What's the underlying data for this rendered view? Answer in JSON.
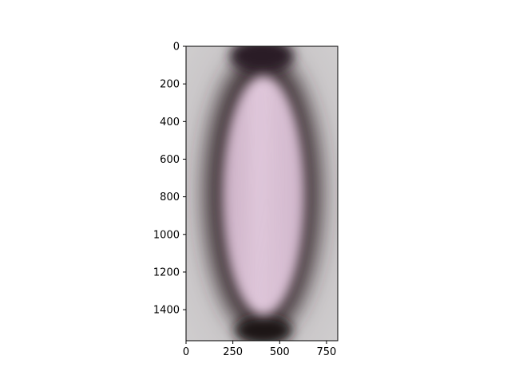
{
  "image": {
    "subject": "microscopy-cell",
    "palette": {
      "background": "#c9c6c8",
      "cell_interior": "#d9bcd2",
      "cell_wall": "#3f3436",
      "polar_cap": "#2a1a24",
      "tint": "#b9a2b6"
    }
  },
  "axes": {
    "x_ticks": [
      "0",
      "250",
      "500",
      "750"
    ],
    "y_ticks": [
      "0",
      "200",
      "400",
      "600",
      "800",
      "1000",
      "1200",
      "1400"
    ],
    "x_range": [
      0,
      810
    ],
    "y_range": [
      1565,
      0
    ]
  }
}
